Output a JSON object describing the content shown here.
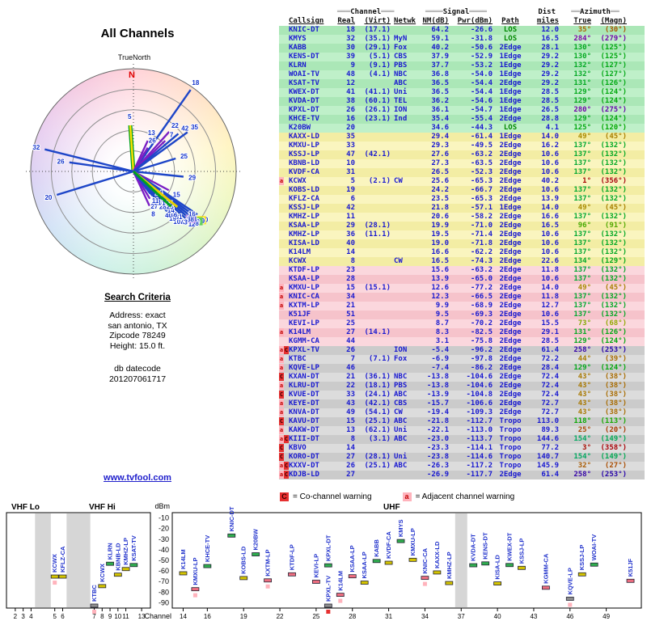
{
  "page_title": "All Channels",
  "radar": {
    "true_north_label": "TrueNorth",
    "north_letter": "N",
    "spokes": [
      {
        "label": "5",
        "az": 356,
        "len": 0.45,
        "c": "n"
      },
      {
        "label": "18",
        "az": 35,
        "len": 0.97,
        "c": "b"
      },
      {
        "label": "13",
        "az": 25,
        "len": 0.33,
        "c": "p"
      },
      {
        "label": "26",
        "az": 31,
        "len": 0.27,
        "c": "p"
      },
      {
        "label": "22",
        "az": 42,
        "len": 0.52,
        "c": "p"
      },
      {
        "label": "7",
        "az": 46,
        "len": 0.43,
        "c": "p"
      },
      {
        "label": "42",
        "az": 50,
        "len": 0.57,
        "c": "b"
      },
      {
        "label": "35",
        "az": 54,
        "len": 0.65,
        "c": "b"
      },
      {
        "label": "25",
        "az": 73,
        "len": 0.43,
        "c": "b"
      },
      {
        "label": "29",
        "az": 96,
        "len": 0.49,
        "c": "b"
      },
      {
        "label": "15",
        "az": 118,
        "len": 0.39,
        "c": "p"
      },
      {
        "label": "8",
        "az": 155,
        "len": 0.37,
        "c": "p"
      },
      {
        "label": "27",
        "az": 149,
        "len": 0.31,
        "c": "p"
      },
      {
        "label": "32",
        "az": 284,
        "len": 0.89,
        "c": "b"
      },
      {
        "label": "26",
        "az": 278,
        "len": 0.63,
        "c": "b"
      },
      {
        "label": "20",
        "az": 253,
        "len": 0.78,
        "c": "b"
      },
      {
        "label": "30",
        "az": 124,
        "len": 0.75,
        "c": "b"
      },
      {
        "label": "39",
        "az": 126,
        "len": 0.73,
        "c": "b",
        "chip": "#ffe000"
      },
      {
        "label": "9",
        "az": 128,
        "len": 0.71,
        "c": "b",
        "chip": "#55cc55"
      },
      {
        "label": "48",
        "az": 130,
        "len": 0.7,
        "c": "b"
      },
      {
        "label": "12",
        "az": 132,
        "len": 0.68,
        "c": "b"
      },
      {
        "label": "41",
        "az": 128,
        "len": 0.66,
        "c": "b"
      },
      {
        "label": "38",
        "az": 130,
        "len": 0.64,
        "c": "b",
        "chip": "#c490ee"
      },
      {
        "label": "16",
        "az": 126,
        "len": 0.62,
        "c": "b"
      },
      {
        "label": "33",
        "az": 135,
        "len": 0.61,
        "c": "b"
      },
      {
        "label": "47",
        "az": 137,
        "len": 0.58,
        "c": "b"
      },
      {
        "label": "10",
        "az": 139,
        "len": 0.56,
        "c": "b"
      },
      {
        "label": "31",
        "az": 135,
        "len": 0.54,
        "c": "b"
      },
      {
        "label": "19",
        "az": 140,
        "len": 0.51,
        "c": "b"
      },
      {
        "label": "36",
        "az": 137,
        "len": 0.49,
        "c": "b"
      },
      {
        "label": "40",
        "az": 141,
        "len": 0.46,
        "c": "b"
      },
      {
        "label": "14",
        "az": 136,
        "len": 0.44,
        "c": "b"
      },
      {
        "label": "23",
        "az": 134,
        "len": 0.41,
        "c": "b"
      },
      {
        "label": "34",
        "az": 132,
        "len": 0.38,
        "c": "b"
      },
      {
        "label": "28",
        "az": 140,
        "len": 0.36,
        "c": "b"
      },
      {
        "label": "51",
        "az": 138,
        "len": 0.33,
        "c": "b"
      },
      {
        "label": "21",
        "az": 142,
        "len": 0.3,
        "c": "b"
      },
      {
        "label": "11",
        "az": 143,
        "len": 0.27,
        "c": "b"
      },
      {
        "label": "24",
        "az": 130,
        "len": 0.24,
        "c": "b"
      },
      {
        "label": "",
        "az": 129,
        "len": 0.55,
        "c": "y"
      },
      {
        "label": "",
        "az": 133,
        "len": 0.5,
        "c": "g"
      }
    ]
  },
  "search": {
    "heading": "Search Criteria",
    "address_lines": [
      "Address: exact",
      "san antonio, TX",
      "Zipcode 78249",
      "Height: 15.0 ft."
    ],
    "db_lines": [
      "db datecode",
      "201207061717"
    ]
  },
  "link_text": "www.tvfool.com",
  "table": {
    "groups": [
      {
        "pre": "═══",
        "label": "Channel",
        "post": "═══"
      },
      {
        "pre": "════",
        "label": "Signal",
        "post": "════"
      },
      {
        "pre": "",
        "label": "Dist",
        "post": ""
      },
      {
        "pre": "══",
        "label": "Azimuth",
        "post": "══"
      }
    ],
    "columns": [
      "Callsign",
      "Real",
      "(Virt)",
      "Netwk",
      "NM(dB)",
      "Pwr(dBm)",
      "Path",
      "miles",
      "True",
      "(Magn)"
    ],
    "row_fields": [
      "callsign",
      "real",
      "virt",
      "netwk",
      "nm_db",
      "pwr_dbm",
      "path",
      "dist_miles",
      "azimuth_true",
      "azimuth_magn",
      "warnings"
    ],
    "rows": [
      [
        "KNIC-DT",
        "18",
        "(17.1)",
        "",
        "64.2",
        "-26.6",
        "LOS",
        "12.0",
        35,
        30,
        ""
      ],
      [
        "KMYS",
        "32",
        "(35.1)",
        "MyN",
        "59.1",
        "-31.8",
        "LOS",
        "16.5",
        284,
        279,
        ""
      ],
      [
        "KABB",
        "30",
        "(29.1)",
        "Fox",
        "40.2",
        "-50.6",
        "2Edge",
        "28.1",
        130,
        125,
        ""
      ],
      [
        "KENS-DT",
        "39",
        "(5.1)",
        "CBS",
        "37.9",
        "-52.9",
        "1Edge",
        "29.2",
        130,
        125,
        ""
      ],
      [
        "KLRN",
        "9",
        "(9.1)",
        "PBS",
        "37.7",
        "-53.2",
        "1Edge",
        "29.2",
        132,
        127,
        ""
      ],
      [
        "WOAI-TV",
        "48",
        "(4.1)",
        "NBC",
        "36.8",
        "-54.0",
        "1Edge",
        "29.2",
        132,
        127,
        ""
      ],
      [
        "KSAT-TV",
        "12",
        "",
        "ABC",
        "36.5",
        "-54.4",
        "2Edge",
        "29.2",
        131,
        126,
        ""
      ],
      [
        "KWEX-DT",
        "41",
        "(41.1)",
        "Uni",
        "36.5",
        "-54.4",
        "1Edge",
        "28.5",
        129,
        124,
        ""
      ],
      [
        "KVDA-DT",
        "38",
        "(60.1)",
        "TEL",
        "36.2",
        "-54.6",
        "1Edge",
        "28.5",
        129,
        124,
        ""
      ],
      [
        "KPXL-DT",
        "26",
        "(26.1)",
        "ION",
        "36.1",
        "-54.7",
        "1Edge",
        "26.5",
        280,
        275,
        ""
      ],
      [
        "KHCE-TV",
        "16",
        "(23.1)",
        "Ind",
        "35.4",
        "-55.4",
        "2Edge",
        "28.8",
        129,
        124,
        ""
      ],
      [
        "K20BW",
        "20",
        "",
        "",
        "34.6",
        "-44.3",
        "LOS",
        "4.1",
        125,
        120,
        ""
      ],
      [
        "KAXX-LD",
        "35",
        "",
        "",
        "29.4",
        "-61.4",
        "1Edge",
        "14.0",
        49,
        45,
        ""
      ],
      [
        "KMXU-LP",
        "33",
        "",
        "",
        "29.3",
        "-49.5",
        "2Edge",
        "16.2",
        137,
        132,
        ""
      ],
      [
        "KSSJ-LP",
        "47",
        "(42.1)",
        "",
        "27.6",
        "-63.2",
        "2Edge",
        "10.6",
        137,
        132,
        ""
      ],
      [
        "KBNB-LD",
        "10",
        "",
        "",
        "27.3",
        "-63.5",
        "2Edge",
        "10.6",
        137,
        132,
        ""
      ],
      [
        "KVDF-CA",
        "31",
        "",
        "",
        "26.5",
        "-52.3",
        "2Edge",
        "10.6",
        137,
        132,
        ""
      ],
      [
        "KCWX",
        "5",
        "(2.1)",
        "CW",
        "25.6",
        "-65.3",
        "2Edge",
        "40.2",
        1,
        356,
        "a"
      ],
      [
        "KOBS-LD",
        "19",
        "",
        "",
        "24.2",
        "-66.7",
        "2Edge",
        "10.6",
        137,
        132,
        ""
      ],
      [
        "KFLZ-CA",
        "6",
        "",
        "",
        "23.5",
        "-65.3",
        "2Edge",
        "13.9",
        137,
        132,
        ""
      ],
      [
        "KSSJ-LP",
        "42",
        "",
        "",
        "21.8",
        "-57.1",
        "1Edge",
        "14.0",
        49,
        45,
        ""
      ],
      [
        "KMHZ-LP",
        "11",
        "",
        "",
        "20.6",
        "-58.2",
        "2Edge",
        "16.6",
        137,
        132,
        ""
      ],
      [
        "KSAA-LP",
        "29",
        "(28.1)",
        "",
        "19.9",
        "-71.0",
        "2Edge",
        "16.5",
        96,
        91,
        ""
      ],
      [
        "KMHZ-LP",
        "36",
        "(11.1)",
        "",
        "19.5",
        "-71.4",
        "2Edge",
        "10.6",
        137,
        132,
        ""
      ],
      [
        "KISA-LD",
        "40",
        "",
        "",
        "19.0",
        "-71.8",
        "2Edge",
        "10.6",
        137,
        132,
        ""
      ],
      [
        "K14LM",
        "14",
        "",
        "",
        "16.6",
        "-62.2",
        "2Edge",
        "10.6",
        137,
        132,
        ""
      ],
      [
        "KCWX",
        "8",
        "",
        "CW",
        "16.5",
        "-74.3",
        "2Edge",
        "22.6",
        134,
        129,
        ""
      ],
      [
        "KTDF-LP",
        "23",
        "",
        "",
        "15.6",
        "-63.2",
        "2Edge",
        "11.8",
        137,
        132,
        ""
      ],
      [
        "KSAA-LP",
        "28",
        "",
        "",
        "13.9",
        "-65.0",
        "2Edge",
        "10.6",
        137,
        132,
        ""
      ],
      [
        "KMXU-LP",
        "15",
        "(15.1)",
        "",
        "12.6",
        "-77.2",
        "2Edge",
        "14.0",
        49,
        45,
        "a"
      ],
      [
        "KNIC-CA",
        "34",
        "",
        "",
        "12.3",
        "-66.5",
        "2Edge",
        "11.8",
        137,
        132,
        "a"
      ],
      [
        "KXTM-LP",
        "21",
        "",
        "",
        "9.9",
        "-68.9",
        "2Edge",
        "12.7",
        137,
        132,
        "a"
      ],
      [
        "K51JF",
        "51",
        "",
        "",
        "9.5",
        "-69.3",
        "2Edge",
        "10.6",
        137,
        132,
        ""
      ],
      [
        "KEVI-LP",
        "25",
        "",
        "",
        "8.7",
        "-70.2",
        "2Edge",
        "15.5",
        73,
        68,
        ""
      ],
      [
        "K14LM",
        "27",
        "(14.1)",
        "",
        "8.3",
        "-82.5",
        "2Edge",
        "29.1",
        131,
        126,
        "a"
      ],
      [
        "KGMM-CA",
        "44",
        "",
        "",
        "3.1",
        "-75.8",
        "2Edge",
        "28.5",
        129,
        124,
        ""
      ],
      [
        "KPXL-TV",
        "26",
        "",
        "ION",
        "-5.4",
        "-96.2",
        "2Edge",
        "61.4",
        258,
        253,
        "aC"
      ],
      [
        "KTBC",
        "7",
        "(7.1)",
        "Fox",
        "-6.9",
        "-97.8",
        "2Edge",
        "72.2",
        44,
        39,
        "a"
      ],
      [
        "KQVE-LP",
        "46",
        "",
        "",
        "-7.4",
        "-86.2",
        "2Edge",
        "28.4",
        129,
        124,
        "a"
      ],
      [
        "KXAN-DT",
        "21",
        "(36.1)",
        "NBC",
        "-13.8",
        "-104.6",
        "2Edge",
        "72.4",
        43,
        38,
        "C"
      ],
      [
        "KLRU-DT",
        "22",
        "(18.1)",
        "PBS",
        "-13.8",
        "-104.6",
        "2Edge",
        "72.4",
        43,
        38,
        "a"
      ],
      [
        "KVUE-DT",
        "33",
        "(24.1)",
        "ABC",
        "-13.9",
        "-104.8",
        "2Edge",
        "72.4",
        43,
        38,
        "C"
      ],
      [
        "KEYE-DT",
        "43",
        "(42.1)",
        "CBS",
        "-15.7",
        "-106.6",
        "2Edge",
        "72.7",
        43,
        38,
        "a"
      ],
      [
        "KNVA-DT",
        "49",
        "(54.1)",
        "CW",
        "-19.4",
        "-109.3",
        "2Edge",
        "72.7",
        43,
        38,
        "a"
      ],
      [
        "KAVU-DT",
        "15",
        "(25.1)",
        "ABC",
        "-21.8",
        "-112.7",
        "Tropo",
        "113.0",
        118,
        113,
        "C"
      ],
      [
        "KAKW-DT",
        "13",
        "(62.1)",
        "Uni",
        "-22.1",
        "-113.0",
        "Tropo",
        "89.3",
        25,
        20,
        "a"
      ],
      [
        "KIII-DT",
        "8",
        "(3.1)",
        "ABC",
        "-23.0",
        "-113.7",
        "Tropo",
        "144.6",
        154,
        149,
        "aC"
      ],
      [
        "KBVO",
        "14",
        "",
        "",
        "-23.3",
        "-114.1",
        "Tropo",
        "77.2",
        3,
        358,
        "C"
      ],
      [
        "KORO-DT",
        "27",
        "(28.1)",
        "Uni",
        "-23.8",
        "-114.6",
        "Tropo",
        "140.7",
        154,
        149,
        "C"
      ],
      [
        "KXXV-DT",
        "26",
        "(25.1)",
        "ABC",
        "-26.3",
        "-117.2",
        "Tropo",
        "145.9",
        32,
        27,
        "aC"
      ],
      [
        "KDJB-LD",
        "27",
        "",
        "",
        "-26.9",
        "-117.7",
        "2Edge",
        "61.4",
        258,
        253,
        "aC"
      ]
    ]
  },
  "legend": {
    "c_letter": "C",
    "c_text": "= Co-channel warning",
    "a_letter": "a",
    "a_text": "= Adjacent channel warning"
  },
  "chart_data": {
    "type": "scatter",
    "ylabel": "dBm",
    "xlabel": "Channel",
    "band_labels": [
      "VHF Lo",
      "VHF Hi",
      "UHF"
    ],
    "y_ticks": [
      -10,
      -20,
      -30,
      -40,
      -50,
      -60,
      -70,
      -80,
      -90
    ],
    "left_ticks": [
      2,
      3,
      4,
      5,
      6,
      7,
      8,
      9,
      10,
      11,
      13
    ],
    "right_ticks": [
      14,
      16,
      19,
      22,
      25,
      28,
      31,
      34,
      37,
      40,
      43,
      46,
      49
    ],
    "ylim": [
      -5,
      -95
    ],
    "series_source": "table.rows: x=real channel, y=Pwr(dBm), visible when y >= -100"
  }
}
